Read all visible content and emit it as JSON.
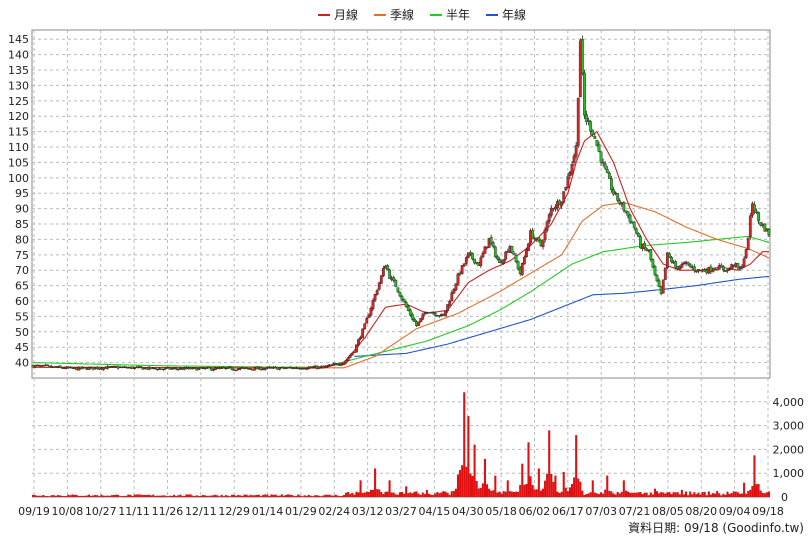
{
  "legend": [
    {
      "label": "月線",
      "color": "#cc2222"
    },
    {
      "label": "季線",
      "color": "#e07030"
    },
    {
      "label": "半年",
      "color": "#22cc22"
    },
    {
      "label": "年線",
      "color": "#2255cc"
    }
  ],
  "credit": "資料日期: 09/18 (Goodinfo.tw)",
  "chart_data": {
    "type": "candlestick",
    "price_axis": {
      "min": 35,
      "max": 148,
      "ticks": [
        40,
        45,
        50,
        55,
        60,
        65,
        70,
        75,
        80,
        85,
        90,
        95,
        100,
        105,
        110,
        115,
        120,
        125,
        130,
        135,
        140,
        145
      ],
      "side": "left"
    },
    "volume_axis": {
      "min": 0,
      "max": 5000,
      "ticks": [
        1000,
        2000,
        3000,
        4000
      ],
      "tick_labels": [
        "1,000",
        "2,000",
        "3,000",
        "4,000"
      ],
      "side": "right"
    },
    "x_labels": [
      "09/19",
      "10/08",
      "10/27",
      "11/11",
      "11/26",
      "12/11",
      "12/29",
      "01/14",
      "01/29",
      "02/24",
      "03/12",
      "03/27",
      "04/15",
      "04/30",
      "05/18",
      "06/02",
      "06/17",
      "07/03",
      "07/21",
      "08/05",
      "08/20",
      "09/04",
      "09/18"
    ],
    "grid": true,
    "price_anchors": [
      [
        0,
        39
      ],
      [
        20,
        38
      ],
      [
        40,
        38.5
      ],
      [
        60,
        38
      ],
      [
        80,
        38
      ],
      [
        100,
        38
      ],
      [
        120,
        38.2
      ],
      [
        140,
        38.5
      ],
      [
        150,
        40
      ],
      [
        155,
        44
      ],
      [
        160,
        52
      ],
      [
        165,
        62
      ],
      [
        170,
        72
      ],
      [
        172,
        68
      ],
      [
        175,
        65
      ],
      [
        180,
        58
      ],
      [
        185,
        52
      ],
      [
        190,
        57
      ],
      [
        198,
        55
      ],
      [
        205,
        68
      ],
      [
        210,
        75
      ],
      [
        215,
        72
      ],
      [
        220,
        80
      ],
      [
        225,
        72
      ],
      [
        230,
        78
      ],
      [
        235,
        69
      ],
      [
        240,
        82
      ],
      [
        245,
        78
      ],
      [
        250,
        90
      ],
      [
        255,
        93
      ],
      [
        258,
        100
      ],
      [
        262,
        110
      ],
      [
        264,
        145
      ],
      [
        266,
        120
      ],
      [
        270,
        115
      ],
      [
        275,
        104
      ],
      [
        280,
        95
      ],
      [
        285,
        90
      ],
      [
        290,
        84
      ],
      [
        293,
        78
      ],
      [
        297,
        76
      ],
      [
        300,
        68
      ],
      [
        303,
        62
      ],
      [
        306,
        75
      ],
      [
        310,
        71
      ],
      [
        315,
        72
      ],
      [
        320,
        70
      ],
      [
        325,
        70
      ],
      [
        330,
        71
      ],
      [
        335,
        70
      ],
      [
        338,
        72
      ],
      [
        341,
        70
      ],
      [
        344,
        76
      ],
      [
        347,
        92
      ],
      [
        350,
        86
      ],
      [
        355,
        82
      ]
    ],
    "ma_month_anchors": [
      [
        0,
        38.5
      ],
      [
        140,
        38.2
      ],
      [
        150,
        40
      ],
      [
        160,
        48
      ],
      [
        170,
        58
      ],
      [
        180,
        59
      ],
      [
        190,
        56
      ],
      [
        200,
        57
      ],
      [
        210,
        66
      ],
      [
        220,
        70
      ],
      [
        230,
        73
      ],
      [
        240,
        78
      ],
      [
        250,
        85
      ],
      [
        258,
        95
      ],
      [
        262,
        105
      ],
      [
        266,
        112
      ],
      [
        272,
        115
      ],
      [
        280,
        105
      ],
      [
        288,
        90
      ],
      [
        296,
        80
      ],
      [
        304,
        72
      ],
      [
        312,
        70
      ],
      [
        322,
        70
      ],
      [
        332,
        71
      ],
      [
        340,
        70
      ],
      [
        346,
        72
      ],
      [
        352,
        76
      ],
      [
        355,
        76
      ]
    ],
    "ma_quarter_anchors": [
      [
        0,
        38.5
      ],
      [
        150,
        38.3
      ],
      [
        165,
        42
      ],
      [
        185,
        51
      ],
      [
        205,
        56
      ],
      [
        225,
        63
      ],
      [
        240,
        69
      ],
      [
        255,
        75
      ],
      [
        265,
        86
      ],
      [
        275,
        91
      ],
      [
        285,
        92
      ],
      [
        300,
        89
      ],
      [
        315,
        84
      ],
      [
        330,
        80
      ],
      [
        345,
        77
      ],
      [
        355,
        74
      ]
    ],
    "ma_half_anchors": [
      [
        0,
        40
      ],
      [
        60,
        39
      ],
      [
        120,
        38.5
      ],
      [
        140,
        38.5
      ],
      [
        160,
        42
      ],
      [
        190,
        47
      ],
      [
        210,
        52
      ],
      [
        225,
        57
      ],
      [
        240,
        63
      ],
      [
        260,
        72
      ],
      [
        275,
        76
      ],
      [
        295,
        78
      ],
      [
        315,
        79
      ],
      [
        330,
        80
      ],
      [
        345,
        81
      ],
      [
        355,
        79
      ]
    ],
    "ma_year_anchors": [
      [
        155,
        42
      ],
      [
        180,
        43
      ],
      [
        200,
        46
      ],
      [
        220,
        50
      ],
      [
        240,
        54
      ],
      [
        255,
        58
      ],
      [
        270,
        62
      ],
      [
        285,
        62.5
      ],
      [
        300,
        63.5
      ],
      [
        320,
        65
      ],
      [
        340,
        67
      ],
      [
        355,
        68
      ]
    ],
    "volume_baseline": 80,
    "volume_spikes": [
      [
        158,
        700
      ],
      [
        165,
        1200
      ],
      [
        172,
        700
      ],
      [
        180,
        450
      ],
      [
        190,
        300
      ],
      [
        198,
        250
      ],
      [
        205,
        950
      ],
      [
        208,
        4400
      ],
      [
        210,
        3400
      ],
      [
        213,
        2200
      ],
      [
        218,
        1600
      ],
      [
        223,
        900
      ],
      [
        229,
        700
      ],
      [
        236,
        1400
      ],
      [
        239,
        2300
      ],
      [
        244,
        1200
      ],
      [
        249,
        2800
      ],
      [
        252,
        900
      ],
      [
        256,
        1050
      ],
      [
        262,
        2600
      ],
      [
        270,
        700
      ],
      [
        277,
        900
      ],
      [
        285,
        700
      ],
      [
        300,
        350
      ],
      [
        313,
        300
      ],
      [
        330,
        250
      ],
      [
        343,
        600
      ],
      [
        348,
        1750
      ],
      [
        350,
        550
      ]
    ]
  }
}
